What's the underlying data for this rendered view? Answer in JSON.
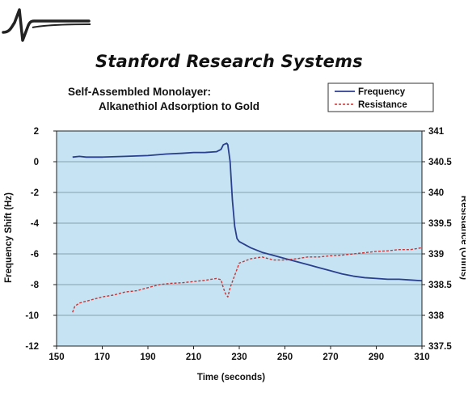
{
  "brand": {
    "company": "Stanford Research Systems",
    "logo": "srs-waveform-logo"
  },
  "chart_data": {
    "type": "line",
    "title": "Self-Assembled Monolayer:",
    "subtitle": "Alkanethiol Adsorption to Gold",
    "xlabel": "Time (seconds)",
    "ylabel": "Frequency Shift (Hz)",
    "y2label": "Resistance (Ohms)",
    "xlim": [
      150,
      310
    ],
    "ylim": [
      -12,
      2
    ],
    "y2lim": [
      337.5,
      341
    ],
    "xticks": [
      150,
      170,
      190,
      210,
      230,
      250,
      270,
      290,
      310
    ],
    "yticks": [
      2,
      0,
      -2,
      -4,
      -6,
      -8,
      -10,
      -12
    ],
    "y2ticks": [
      "341",
      "340.5",
      "340",
      "339.5",
      "339",
      "338.5",
      "338",
      "337.5"
    ],
    "y2tick_values": [
      341,
      340.5,
      340,
      339.5,
      339,
      338.5,
      338,
      337.5
    ],
    "grid": true,
    "legend": "top-right",
    "plot_background": "#c5e3f2",
    "series": [
      {
        "name": "Frequency",
        "axis": "left",
        "color": "#2b3f8f",
        "style": "solid",
        "points": [
          [
            157,
            0.3
          ],
          [
            160,
            0.35
          ],
          [
            163,
            0.3
          ],
          [
            170,
            0.3
          ],
          [
            180,
            0.35
          ],
          [
            190,
            0.4
          ],
          [
            198,
            0.5
          ],
          [
            205,
            0.55
          ],
          [
            210,
            0.6
          ],
          [
            215,
            0.6
          ],
          [
            220,
            0.65
          ],
          [
            222,
            0.8
          ],
          [
            223,
            1.1
          ],
          [
            224.5,
            1.2
          ],
          [
            225,
            1.1
          ],
          [
            226,
            0.0
          ],
          [
            227,
            -2.5
          ],
          [
            228,
            -4.2
          ],
          [
            229,
            -5.0
          ],
          [
            230,
            -5.2
          ],
          [
            235,
            -5.6
          ],
          [
            240,
            -5.9
          ],
          [
            245,
            -6.1
          ],
          [
            250,
            -6.3
          ],
          [
            255,
            -6.5
          ],
          [
            260,
            -6.7
          ],
          [
            265,
            -6.9
          ],
          [
            270,
            -7.1
          ],
          [
            275,
            -7.3
          ],
          [
            280,
            -7.45
          ],
          [
            285,
            -7.55
          ],
          [
            290,
            -7.6
          ],
          [
            295,
            -7.65
          ],
          [
            300,
            -7.65
          ],
          [
            305,
            -7.7
          ],
          [
            310,
            -7.75
          ]
        ]
      },
      {
        "name": "Resistance",
        "axis": "right",
        "color": "#cc3333",
        "style": "dashed",
        "points": [
          [
            157,
            338.05
          ],
          [
            158,
            338.15
          ],
          [
            160,
            338.2
          ],
          [
            165,
            338.25
          ],
          [
            170,
            338.3
          ],
          [
            175,
            338.33
          ],
          [
            180,
            338.38
          ],
          [
            185,
            338.4
          ],
          [
            190,
            338.45
          ],
          [
            195,
            338.5
          ],
          [
            200,
            338.52
          ],
          [
            205,
            338.53
          ],
          [
            210,
            338.55
          ],
          [
            215,
            338.57
          ],
          [
            220,
            338.6
          ],
          [
            222,
            338.58
          ],
          [
            223,
            338.45
          ],
          [
            224,
            338.35
          ],
          [
            225,
            338.3
          ],
          [
            226,
            338.45
          ],
          [
            228,
            338.65
          ],
          [
            230,
            338.85
          ],
          [
            235,
            338.92
          ],
          [
            240,
            338.95
          ],
          [
            245,
            338.9
          ],
          [
            250,
            338.9
          ],
          [
            255,
            338.92
          ],
          [
            260,
            338.95
          ],
          [
            265,
            338.95
          ],
          [
            270,
            338.97
          ],
          [
            275,
            338.98
          ],
          [
            280,
            339.0
          ],
          [
            285,
            339.02
          ],
          [
            290,
            339.04
          ],
          [
            295,
            339.05
          ],
          [
            300,
            339.07
          ],
          [
            305,
            339.07
          ],
          [
            310,
            339.1
          ]
        ]
      }
    ]
  }
}
